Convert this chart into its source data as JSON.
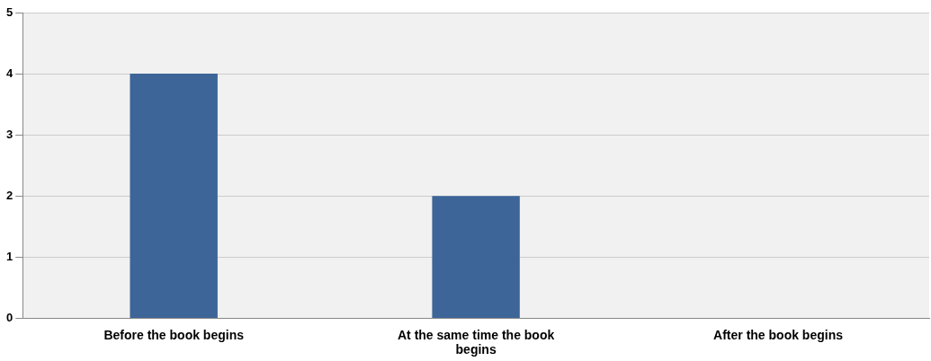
{
  "chart_data": {
    "type": "bar",
    "categories": [
      "Before the book begins",
      "At the same time the book begins",
      "After the book begins"
    ],
    "values": [
      4,
      2,
      0
    ],
    "color": "#3d6598",
    "ylim": [
      0,
      5
    ],
    "yticks": [
      0,
      1,
      2,
      3,
      4,
      5
    ],
    "grid": "y",
    "legend": false
  }
}
